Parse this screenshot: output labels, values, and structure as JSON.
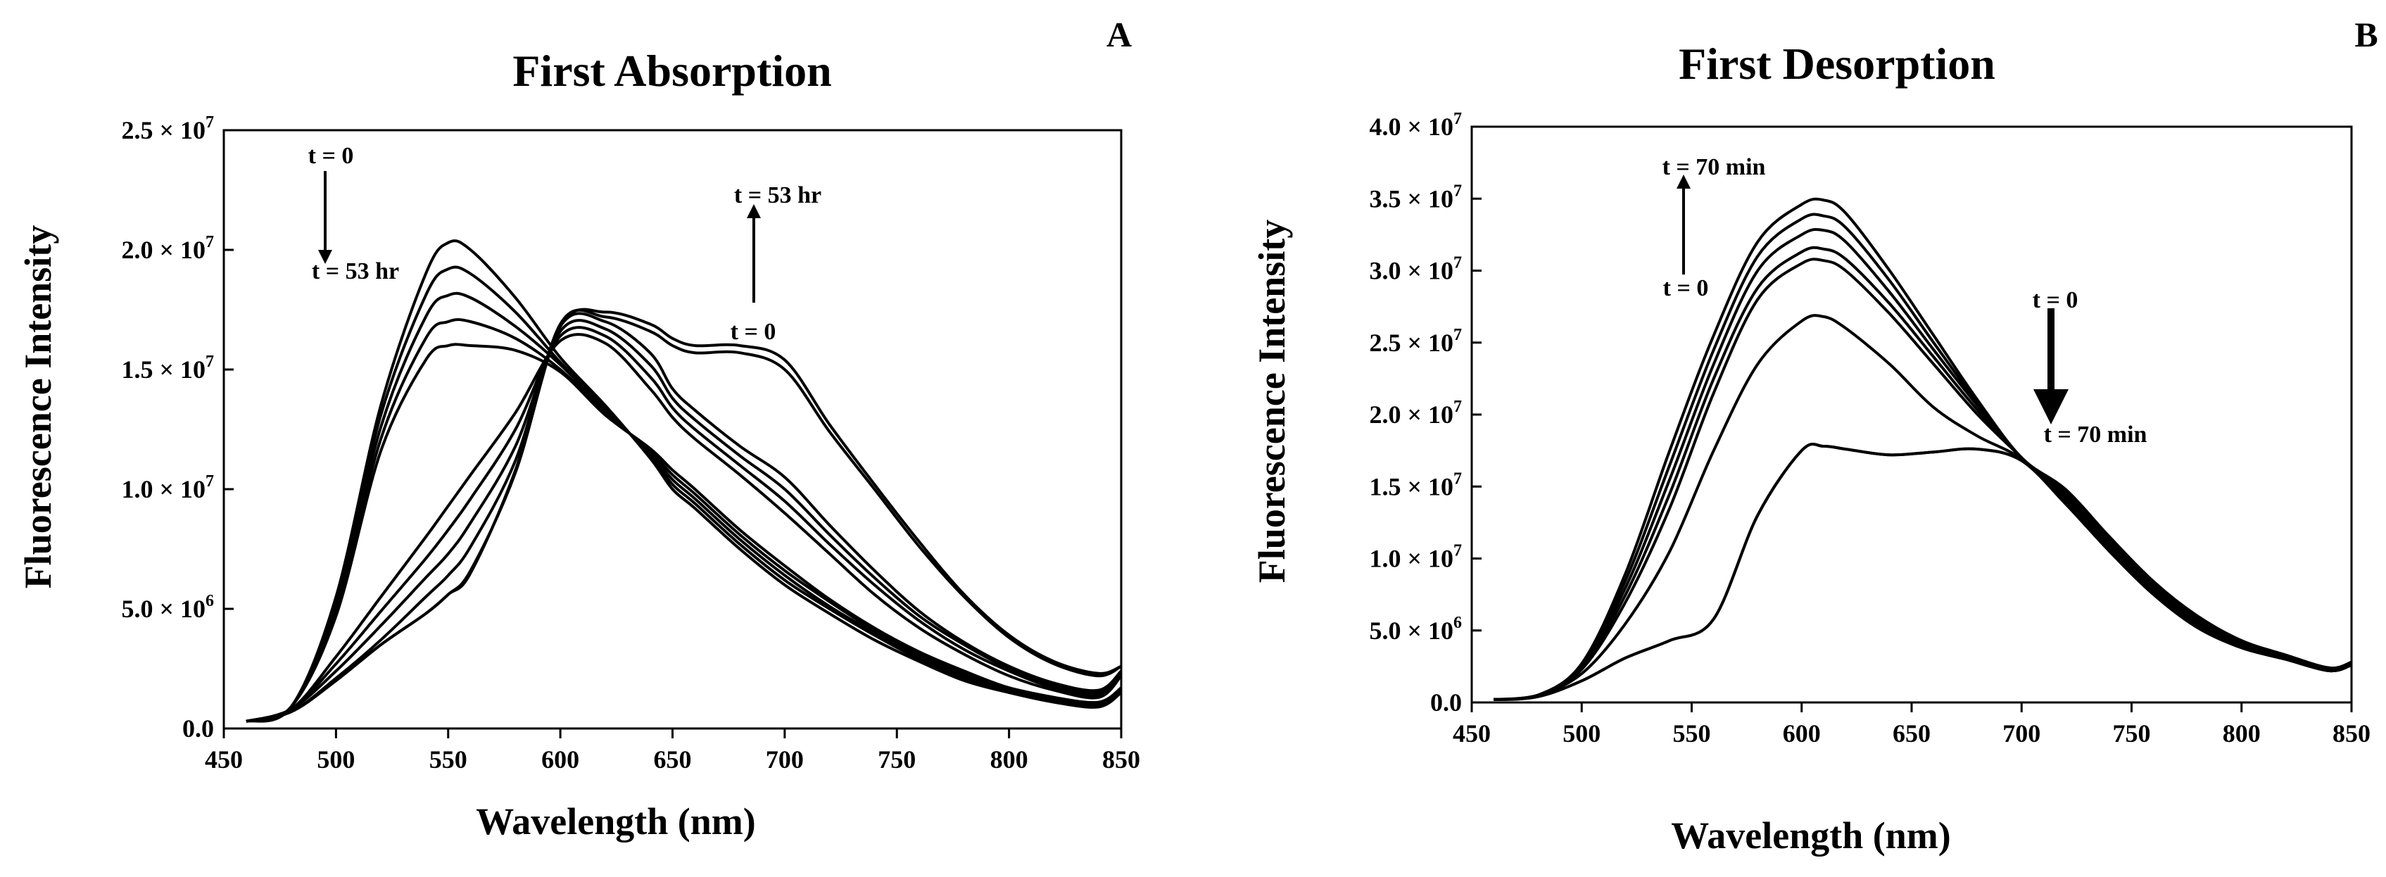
{
  "chart_data": [
    {
      "panel": "A",
      "type": "line",
      "title": "First Absorption",
      "xlabel": "Wavelength (nm)",
      "ylabel": "Fluorescence Intensity",
      "xlim": [
        450,
        850
      ],
      "ylim": [
        0,
        25000000
      ],
      "grid": false,
      "legend": "none",
      "xticks": [
        {
          "value": 450,
          "label": "450"
        },
        {
          "value": 500,
          "label": "500"
        },
        {
          "value": 550,
          "label": "550"
        },
        {
          "value": 600,
          "label": "600"
        },
        {
          "value": 650,
          "label": "650"
        },
        {
          "value": 700,
          "label": "700"
        },
        {
          "value": 750,
          "label": "750"
        },
        {
          "value": 800,
          "label": "800"
        },
        {
          "value": 850,
          "label": "850"
        }
      ],
      "yticks": [
        {
          "value": 0,
          "base": "0.0",
          "exp": ""
        },
        {
          "value": 5000000,
          "base": "5.0 × 10",
          "exp": "6"
        },
        {
          "value": 10000000,
          "base": "1.0 × 10",
          "exp": "7"
        },
        {
          "value": 15000000,
          "base": "1.5 × 10",
          "exp": "7"
        },
        {
          "value": 20000000,
          "base": "2.0 × 10",
          "exp": "7"
        },
        {
          "value": 25000000,
          "base": "2.5 × 10",
          "exp": "7"
        }
      ],
      "curve_x": [
        460,
        480,
        500,
        520,
        540,
        550,
        560,
        580,
        600,
        620,
        640,
        650,
        660,
        680,
        700,
        720,
        740,
        760,
        780,
        800,
        820,
        840,
        850
      ],
      "series": [
        {
          "name": "t = 0",
          "values": [
            0.3,
            0.9,
            5.5,
            13.5,
            19.0,
            20.3,
            20.0,
            18.0,
            15.5,
            13.5,
            11.3,
            10.0,
            9.2,
            7.5,
            6.0,
            4.8,
            3.7,
            2.8,
            2.0,
            1.5,
            1.1,
            0.9,
            1.5
          ]
        },
        {
          "name": "",
          "values": [
            0.3,
            0.9,
            5.3,
            13.1,
            18.1,
            19.2,
            19.0,
            17.4,
            15.3,
            13.4,
            11.4,
            10.2,
            9.4,
            7.7,
            6.2,
            5.0,
            3.9,
            2.9,
            2.1,
            1.6,
            1.2,
            1.0,
            1.6
          ]
        },
        {
          "name": "",
          "values": [
            0.3,
            0.9,
            5.1,
            12.6,
            17.2,
            18.1,
            18.0,
            16.8,
            15.2,
            13.3,
            11.5,
            10.4,
            9.6,
            7.9,
            6.4,
            5.1,
            4.0,
            3.0,
            2.2,
            1.6,
            1.2,
            1.0,
            1.6
          ]
        },
        {
          "name": "",
          "values": [
            0.3,
            0.9,
            4.9,
            12.1,
            16.3,
            17.0,
            17.0,
            16.3,
            15.0,
            13.2,
            11.6,
            10.6,
            9.8,
            8.1,
            6.6,
            5.3,
            4.1,
            3.1,
            2.3,
            1.7,
            1.3,
            1.0,
            1.7
          ]
        },
        {
          "name": "",
          "values": [
            0.3,
            0.9,
            4.7,
            11.6,
            15.4,
            16.0,
            16.0,
            15.8,
            14.9,
            13.1,
            11.7,
            10.8,
            10.0,
            8.3,
            6.8,
            5.4,
            4.2,
            3.2,
            2.4,
            1.7,
            1.3,
            1.1,
            1.7
          ]
        },
        {
          "name": "t = 53 hr",
          "values": [
            0.3,
            0.8,
            3.0,
            5.5,
            8.0,
            9.3,
            10.6,
            13.2,
            16.2,
            16.1,
            14.2,
            13.0,
            12.1,
            10.6,
            9.0,
            7.3,
            5.6,
            4.2,
            3.1,
            2.2,
            1.6,
            1.3,
            2.2
          ]
        },
        {
          "name": "",
          "values": [
            0.3,
            0.8,
            2.7,
            4.9,
            7.1,
            8.3,
            9.6,
            12.5,
            16.4,
            16.4,
            14.7,
            13.4,
            12.5,
            11.0,
            9.5,
            7.7,
            6.0,
            4.5,
            3.3,
            2.4,
            1.7,
            1.4,
            2.3
          ]
        },
        {
          "name": "",
          "values": [
            0.3,
            0.8,
            2.4,
            4.3,
            6.3,
            7.3,
            8.6,
            11.8,
            16.6,
            16.7,
            15.2,
            13.8,
            12.9,
            11.4,
            10.0,
            8.1,
            6.3,
            4.7,
            3.5,
            2.5,
            1.8,
            1.5,
            2.4
          ]
        },
        {
          "name": "",
          "values": [
            0.3,
            0.7,
            2.1,
            3.7,
            5.5,
            6.4,
            7.6,
            11.2,
            16.8,
            17.0,
            15.7,
            14.2,
            13.3,
            11.8,
            10.5,
            8.5,
            6.6,
            4.9,
            3.6,
            2.6,
            1.9,
            1.6,
            2.4
          ]
        },
        {
          "name": "",
          "values": [
            0.3,
            0.7,
            2.0,
            3.5,
            4.8,
            5.6,
            6.5,
            10.8,
            16.9,
            17.2,
            16.6,
            16.0,
            15.7,
            15.7,
            15.0,
            12.4,
            10.0,
            7.6,
            5.5,
            3.8,
            2.7,
            2.2,
            2.6
          ]
        },
        {
          "name": "",
          "values": [
            0.3,
            0.7,
            2.0,
            3.5,
            4.8,
            5.6,
            6.6,
            10.7,
            16.8,
            17.4,
            16.9,
            16.3,
            16.0,
            16.0,
            15.4,
            12.7,
            10.2,
            7.8,
            5.6,
            3.9,
            2.8,
            2.3,
            2.6
          ]
        }
      ],
      "annotations": [
        {
          "text": "t = 0",
          "role": "down-arrow-start"
        },
        {
          "text": "t = 53 hr",
          "role": "down-arrow-end"
        },
        {
          "text": "t = 53 hr",
          "role": "up-arrow-end"
        },
        {
          "text": "t = 0",
          "role": "up-arrow-start"
        }
      ]
    },
    {
      "panel": "B",
      "type": "line",
      "title": "First Desorption",
      "xlabel": "Wavelength (nm)",
      "ylabel": "Fluorescence Intensity",
      "xlim": [
        450,
        850
      ],
      "ylim": [
        0,
        40000000
      ],
      "grid": false,
      "legend": "none",
      "xticks": [
        {
          "value": 450,
          "label": "450"
        },
        {
          "value": 500,
          "label": "500"
        },
        {
          "value": 550,
          "label": "550"
        },
        {
          "value": 600,
          "label": "600"
        },
        {
          "value": 650,
          "label": "650"
        },
        {
          "value": 700,
          "label": "700"
        },
        {
          "value": 750,
          "label": "750"
        },
        {
          "value": 800,
          "label": "800"
        },
        {
          "value": 850,
          "label": "850"
        }
      ],
      "yticks": [
        {
          "value": 0,
          "base": "0.0",
          "exp": ""
        },
        {
          "value": 5000000,
          "base": "5.0 × 10",
          "exp": "6"
        },
        {
          "value": 10000000,
          "base": "1.0 × 10",
          "exp": "7"
        },
        {
          "value": 15000000,
          "base": "1.5 × 10",
          "exp": "7"
        },
        {
          "value": 20000000,
          "base": "2.0 × 10",
          "exp": "7"
        },
        {
          "value": 25000000,
          "base": "2.5 × 10",
          "exp": "7"
        },
        {
          "value": 30000000,
          "base": "3.0 × 10",
          "exp": "7"
        },
        {
          "value": 35000000,
          "base": "3.5 × 10",
          "exp": "7"
        },
        {
          "value": 40000000,
          "base": "4.0 × 10",
          "exp": "7"
        }
      ],
      "curve_x": [
        460,
        480,
        500,
        520,
        540,
        560,
        580,
        600,
        610,
        620,
        640,
        660,
        680,
        700,
        720,
        740,
        760,
        780,
        800,
        820,
        840,
        850
      ],
      "series": [
        {
          "name": "t = 0",
          "values": [
            0.2,
            0.4,
            1.5,
            3.1,
            4.3,
            5.8,
            13.0,
            17.5,
            17.8,
            17.6,
            17.2,
            17.4,
            17.6,
            16.8,
            13.8,
            10.5,
            7.5,
            5.2,
            3.8,
            3.0,
            2.2,
            2.6
          ]
        },
        {
          "name": "",
          "values": [
            0.2,
            0.4,
            1.5,
            3.1,
            4.3,
            5.8,
            13.0,
            17.5,
            17.8,
            17.6,
            17.2,
            17.4,
            17.6,
            16.8,
            13.8,
            10.5,
            7.5,
            5.2,
            3.8,
            3.0,
            2.2,
            2.6
          ]
        },
        {
          "name": "",
          "values": [
            0.2,
            0.5,
            2.0,
            5.5,
            10.5,
            17.5,
            23.5,
            26.5,
            26.8,
            26.0,
            23.5,
            20.5,
            18.5,
            16.9,
            13.9,
            10.5,
            7.5,
            5.2,
            3.8,
            3.0,
            2.2,
            2.6
          ]
        },
        {
          "name": "",
          "values": [
            0.2,
            0.5,
            2.3,
            7.0,
            13.5,
            21.5,
            28.0,
            30.5,
            30.7,
            30.0,
            27.0,
            23.5,
            20.0,
            17.0,
            14.0,
            10.7,
            7.6,
            5.3,
            3.9,
            3.0,
            2.2,
            2.6
          ]
        },
        {
          "name": "",
          "values": [
            0.2,
            0.5,
            2.4,
            7.5,
            14.5,
            22.5,
            28.8,
            31.3,
            31.5,
            30.8,
            27.7,
            24.0,
            20.3,
            17.0,
            14.2,
            10.9,
            7.8,
            5.4,
            4.0,
            3.1,
            2.3,
            2.7
          ]
        },
        {
          "name": "",
          "values": [
            0.2,
            0.5,
            2.5,
            8.0,
            15.5,
            23.5,
            30.0,
            32.5,
            32.8,
            32.0,
            28.5,
            24.5,
            20.6,
            17.0,
            14.4,
            11.1,
            8.0,
            5.6,
            4.1,
            3.1,
            2.3,
            2.7
          ]
        },
        {
          "name": "",
          "values": [
            0.2,
            0.5,
            2.6,
            8.5,
            16.5,
            24.5,
            31.0,
            33.6,
            33.8,
            33.0,
            29.3,
            25.0,
            20.8,
            17.0,
            14.6,
            11.3,
            8.2,
            5.8,
            4.2,
            3.2,
            2.4,
            2.7
          ]
        },
        {
          "name": "t = 70 min",
          "values": [
            0.2,
            0.5,
            2.7,
            9.0,
            17.5,
            25.5,
            32.0,
            34.6,
            34.9,
            34.0,
            30.0,
            25.5,
            21.0,
            17.0,
            14.8,
            11.5,
            8.4,
            6.0,
            4.3,
            3.3,
            2.4,
            2.8
          ]
        }
      ],
      "annotations": [
        {
          "text": "t = 70 min",
          "role": "up-arrow-end"
        },
        {
          "text": "t = 0",
          "role": "up-arrow-start"
        },
        {
          "text": "t = 0",
          "role": "down-arrow-start"
        },
        {
          "text": "t = 70 min",
          "role": "down-arrow-end"
        }
      ]
    }
  ]
}
